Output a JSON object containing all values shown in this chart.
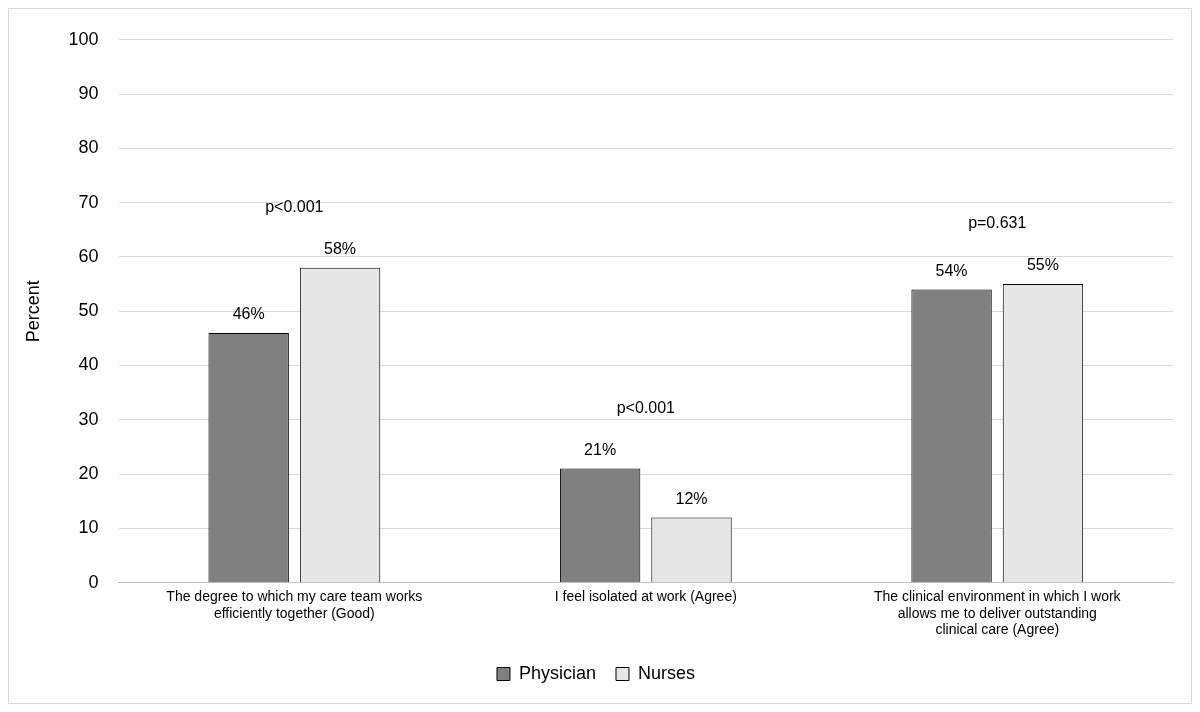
{
  "chart_data": {
    "type": "bar",
    "ylabel": "Percent",
    "categories": [
      "The degree to which my care team works efficiently together (Good)",
      "I feel isolated at work (Agree)",
      "The clinical environment in which I work allows me to deliver outstanding clinical care (Agree)"
    ],
    "series": [
      {
        "name": "Physician",
        "color": "#808080",
        "values": [
          46,
          21,
          54
        ],
        "value_labels": [
          "46%",
          "21%",
          "54%"
        ]
      },
      {
        "name": "Nurses",
        "color": "#e6e6e6",
        "values": [
          58,
          12,
          55
        ],
        "value_labels": [
          "58%",
          "12%",
          "55%"
        ]
      }
    ],
    "ylim": [
      0,
      100
    ],
    "yticks": [
      0,
      10,
      20,
      30,
      40,
      50,
      60,
      70,
      80,
      90,
      100
    ],
    "grid": "y",
    "legend": "bottom",
    "annotations": [
      "p<0.001",
      "p<0.001",
      "p=0.631"
    ]
  }
}
